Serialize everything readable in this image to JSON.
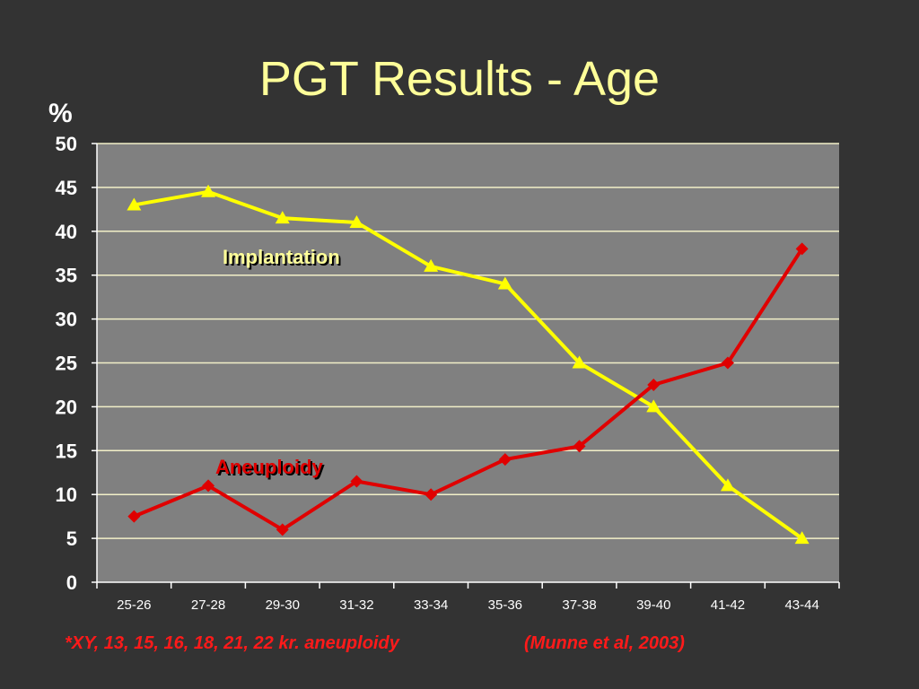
{
  "slide": {
    "title": "PGT Results - Age",
    "footnote": "*XY, 13, 15, 16, 18, 21, 22 kr. aneuploidy",
    "citation": "(Munne et al, 2003)"
  },
  "chart_data": {
    "type": "line",
    "ylabel": "%",
    "ylim": [
      0,
      50
    ],
    "yticks": [
      0,
      5,
      10,
      15,
      20,
      25,
      30,
      35,
      40,
      45,
      50
    ],
    "grid": true,
    "categories": [
      "25-26",
      "27-28",
      "29-30",
      "31-32",
      "33-34",
      "35-36",
      "37-38",
      "39-40",
      "41-42",
      "43-44"
    ],
    "series": [
      {
        "name": "Implantation",
        "color": "#ffff00",
        "marker": "triangle",
        "values": [
          43,
          44.5,
          41.5,
          41,
          36,
          34,
          25,
          20,
          11,
          5
        ]
      },
      {
        "name": "Aneuploidy",
        "color": "#e00000",
        "marker": "diamond",
        "values": [
          7.5,
          11,
          6,
          11.5,
          10,
          14,
          15.5,
          22.5,
          25,
          38
        ]
      }
    ]
  }
}
